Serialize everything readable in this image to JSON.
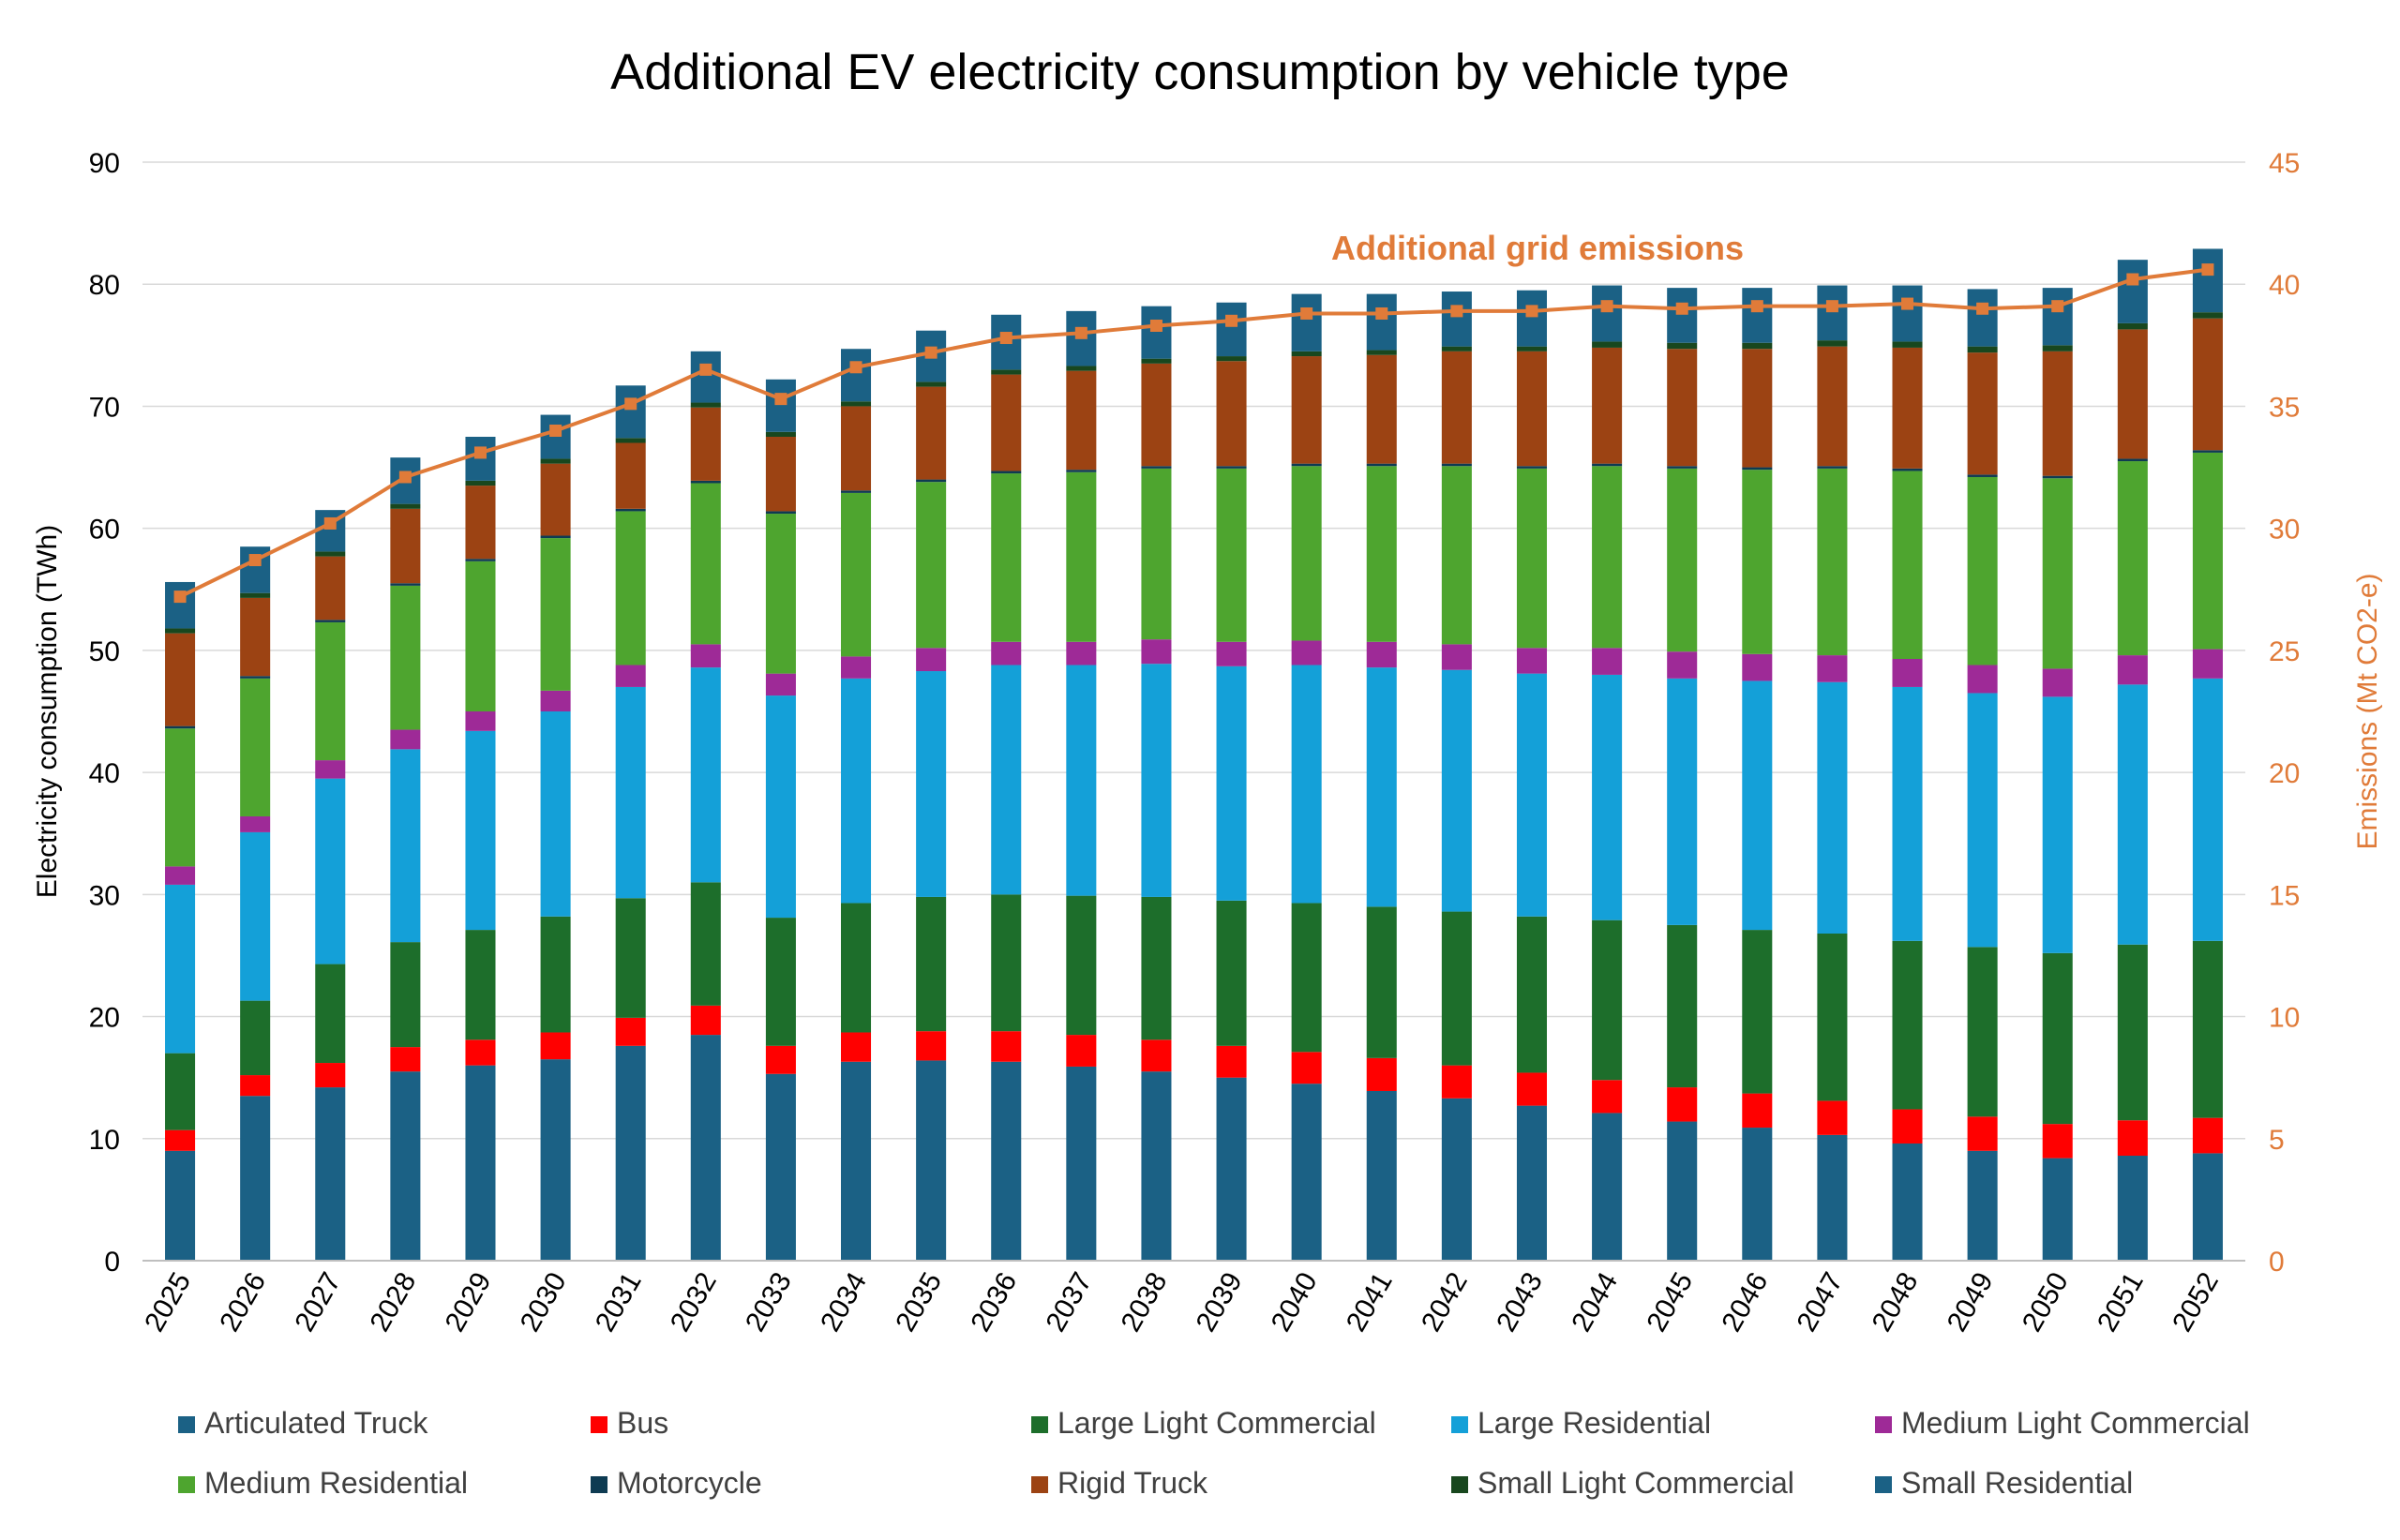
{
  "chart_data": {
    "type": "bar",
    "stacked": true,
    "title": "Additional EV electricity consumption by vehicle type",
    "ylabel": "Electricity consumption (TWh)",
    "y2label": "Emissions (Mt CO2-e)",
    "ylim": [
      0,
      90
    ],
    "y2lim": [
      0,
      45
    ],
    "yticks": [
      "0",
      "10",
      "20",
      "30",
      "40",
      "50",
      "60",
      "70",
      "80",
      "90"
    ],
    "y2ticks": [
      "0",
      "5",
      "10",
      "15",
      "20",
      "25",
      "30",
      "35",
      "40",
      "45"
    ],
    "grid": true,
    "legend_position": "bottom",
    "annotation": "Additional grid emissions",
    "categories": [
      "2025",
      "2026",
      "2027",
      "2028",
      "2029",
      "2030",
      "2031",
      "2032",
      "2033",
      "2034",
      "2035",
      "2036",
      "2037",
      "2038",
      "2039",
      "2040",
      "2041",
      "2042",
      "2043",
      "2044",
      "2045",
      "2046",
      "2047",
      "2048",
      "2049",
      "2050",
      "2051",
      "2052"
    ],
    "series": [
      {
        "name": "Articulated Truck",
        "color": "#1B6185",
        "values": [
          9,
          13.5,
          14.2,
          15.5,
          16,
          16.5,
          17.6,
          18.5,
          15.3,
          16.3,
          16.4,
          16.3,
          15.9,
          15.5,
          15.0,
          14.5,
          13.9,
          13.3,
          12.7,
          12.1,
          11.4,
          10.9,
          10.3,
          9.6,
          9.0,
          8.4,
          8.6,
          8.8
        ]
      },
      {
        "name": "Bus",
        "color": "#FF0000",
        "values": [
          1.7,
          1.7,
          2.0,
          2.0,
          2.1,
          2.2,
          2.3,
          2.4,
          2.3,
          2.4,
          2.4,
          2.5,
          2.6,
          2.6,
          2.6,
          2.6,
          2.7,
          2.7,
          2.7,
          2.7,
          2.8,
          2.8,
          2.8,
          2.8,
          2.8,
          2.8,
          2.9,
          2.9
        ]
      },
      {
        "name": "Large Light Commercial",
        "color": "#1D6E2B",
        "values": [
          6.3,
          6.1,
          8.1,
          8.6,
          9.0,
          9.5,
          9.8,
          10.1,
          10.5,
          10.6,
          11.0,
          11.2,
          11.4,
          11.7,
          11.9,
          12.2,
          12.4,
          12.6,
          12.8,
          13.1,
          13.3,
          13.4,
          13.7,
          13.8,
          13.9,
          14.0,
          14.4,
          14.5
        ]
      },
      {
        "name": "Large Residential",
        "color": "#14A0D8",
        "values": [
          13.8,
          13.8,
          15.2,
          15.8,
          16.3,
          16.8,
          17.3,
          17.6,
          18.2,
          18.4,
          18.5,
          18.8,
          18.9,
          19.1,
          19.2,
          19.5,
          19.6,
          19.8,
          19.9,
          20.1,
          20.2,
          20.4,
          20.6,
          20.8,
          20.8,
          21.0,
          21.3,
          21.5
        ]
      },
      {
        "name": "Medium Light Commercial",
        "color": "#9E2A97",
        "values": [
          1.5,
          1.3,
          1.5,
          1.6,
          1.6,
          1.7,
          1.8,
          1.9,
          1.8,
          1.8,
          1.9,
          1.9,
          1.9,
          2.0,
          2.0,
          2.0,
          2.1,
          2.1,
          2.1,
          2.2,
          2.2,
          2.2,
          2.2,
          2.3,
          2.3,
          2.3,
          2.4,
          2.4
        ]
      },
      {
        "name": "Medium Residential",
        "color": "#4EA52F",
        "values": [
          11.3,
          11.3,
          11.3,
          11.8,
          12.3,
          12.5,
          12.6,
          13.2,
          13.1,
          13.4,
          13.6,
          13.8,
          13.9,
          14.0,
          14.2,
          14.3,
          14.4,
          14.6,
          14.7,
          14.9,
          15.0,
          15.1,
          15.3,
          15.4,
          15.4,
          15.6,
          15.9,
          16.1
        ]
      },
      {
        "name": "Motorcycle",
        "color": "#0E3B52",
        "values": [
          0.2,
          0.2,
          0.2,
          0.2,
          0.2,
          0.2,
          0.2,
          0.2,
          0.2,
          0.2,
          0.2,
          0.2,
          0.2,
          0.2,
          0.2,
          0.2,
          0.2,
          0.2,
          0.2,
          0.2,
          0.2,
          0.2,
          0.2,
          0.2,
          0.2,
          0.2,
          0.2,
          0.2
        ]
      },
      {
        "name": "Rigid Truck",
        "color": "#9C4313",
        "values": [
          7.6,
          6.4,
          5.2,
          6.1,
          6.0,
          5.9,
          5.4,
          6.0,
          6.1,
          6.9,
          7.6,
          7.9,
          8.1,
          8.4,
          8.6,
          8.8,
          8.9,
          9.2,
          9.4,
          9.5,
          9.6,
          9.7,
          9.8,
          9.9,
          10.0,
          10.2,
          10.6,
          10.8
        ]
      },
      {
        "name": "Small Light Commercial",
        "color": "#18471E",
        "values": [
          0.4,
          0.4,
          0.4,
          0.4,
          0.4,
          0.4,
          0.4,
          0.4,
          0.4,
          0.4,
          0.4,
          0.4,
          0.4,
          0.4,
          0.4,
          0.4,
          0.4,
          0.4,
          0.4,
          0.5,
          0.5,
          0.5,
          0.5,
          0.5,
          0.5,
          0.5,
          0.5,
          0.5
        ]
      },
      {
        "name": "Small Residential",
        "color": "#1B6185",
        "values": [
          3.8,
          3.8,
          3.4,
          3.8,
          3.6,
          3.6,
          4.3,
          4.2,
          4.3,
          4.3,
          4.2,
          4.5,
          4.5,
          4.3,
          4.4,
          4.7,
          4.6,
          4.5,
          4.6,
          4.6,
          4.5,
          4.5,
          4.5,
          4.6,
          4.7,
          4.7,
          5.2,
          5.2
        ]
      }
    ],
    "line": {
      "name": "Additional grid emissions",
      "color": "#E07B39",
      "axis": "right",
      "values": [
        27.2,
        28.7,
        30.2,
        32.1,
        33.1,
        34.0,
        35.1,
        36.5,
        35.3,
        36.6,
        37.2,
        37.8,
        38.0,
        38.3,
        38.5,
        38.8,
        38.8,
        38.9,
        38.9,
        39.1,
        39.0,
        39.1,
        39.1,
        39.2,
        39.0,
        39.1,
        40.2,
        40.6
      ]
    }
  }
}
